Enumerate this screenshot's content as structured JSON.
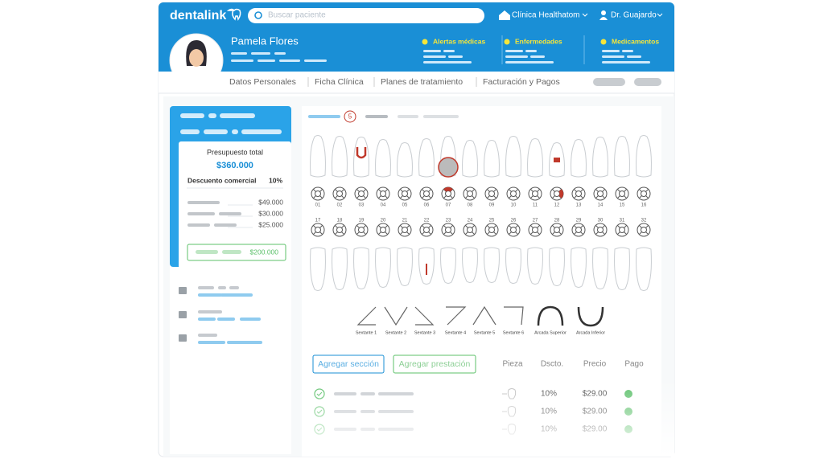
{
  "header": {
    "logo": "dentalink",
    "search_placeholder": "Buscar paciente",
    "clinic": "Clínica Healthatom",
    "user": "Dr. Guajardo"
  },
  "patient": {
    "name": "Pamela Flores",
    "alerts": [
      "Alertas médicas",
      "Enfermedades",
      "Medicamentos"
    ]
  },
  "tabs": [
    "Datos Personales",
    "Ficha Clínica",
    "Planes de tratamiento",
    "Facturación y Pagos"
  ],
  "badge": "5",
  "budget": {
    "title": "Presupuesto total",
    "total": "$360.000",
    "discount_label": "Descuento comercial",
    "discount": "10%",
    "items": [
      "$49.000",
      "$30.000",
      "$25.000"
    ],
    "paid": "$200.000"
  },
  "odontogram": {
    "upper": [
      "01",
      "02",
      "03",
      "04",
      "05",
      "06",
      "07",
      "08",
      "09",
      "10",
      "11",
      "12",
      "13",
      "14",
      "15",
      "16"
    ],
    "lower": [
      "17",
      "18",
      "19",
      "20",
      "21",
      "22",
      "23",
      "24",
      "25",
      "26",
      "27",
      "28",
      "29",
      "30",
      "31",
      "32"
    ],
    "sextants": [
      "Sextante 1",
      "Sextante 2",
      "Sextante 3",
      "Sextante 4",
      "Sextante 5",
      "Sextante 6",
      "Arcada Superior",
      "Arcada Inferior"
    ]
  },
  "treatment": {
    "buttons": [
      "Agregar sección",
      "Agregar prestación"
    ],
    "columns": [
      "Pieza",
      "Dscto.",
      "Precio",
      "Pago"
    ],
    "rows": [
      [
        "10%",
        "$29.00"
      ],
      [
        "10%",
        "$29.00"
      ],
      [
        "10%",
        "$29.00"
      ]
    ]
  }
}
